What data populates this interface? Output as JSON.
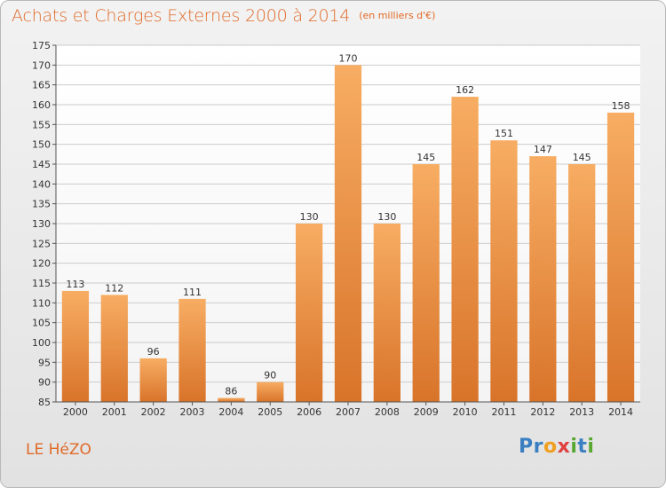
{
  "title": "Achats et Charges Externes 2000 à 2014",
  "unit_note": "(en milliers d'€)",
  "commune": "LE HéZO",
  "logo": {
    "letters": [
      "P",
      "r",
      "o",
      "x",
      "i",
      "t",
      "i"
    ],
    "colors": [
      "#3a7fc1",
      "#3a7fc1",
      "#f0a020",
      "#e04040",
      "#5aa832",
      "#3a7fc1",
      "#5aa832"
    ]
  },
  "colors": {
    "accent": "#e06a28",
    "bar_light": "#f5a860",
    "bar_dark": "#d9762a",
    "grid": "#cccccc"
  },
  "chart_data": {
    "type": "bar",
    "title": "Achats et Charges Externes 2000 à 2014",
    "categories": [
      "2000",
      "2001",
      "2002",
      "2003",
      "2004",
      "2005",
      "2006",
      "2007",
      "2008",
      "2009",
      "2010",
      "2011",
      "2012",
      "2013",
      "2014"
    ],
    "values": [
      113,
      112,
      96,
      111,
      86,
      90,
      130,
      170,
      130,
      145,
      162,
      151,
      147,
      145,
      158
    ],
    "ylim": [
      85,
      175
    ],
    "yticks": [
      85,
      90,
      95,
      100,
      105,
      110,
      115,
      120,
      125,
      130,
      135,
      140,
      145,
      150,
      155,
      160,
      165,
      170,
      175
    ],
    "grid": true,
    "xlabel": "",
    "ylabel": ""
  }
}
